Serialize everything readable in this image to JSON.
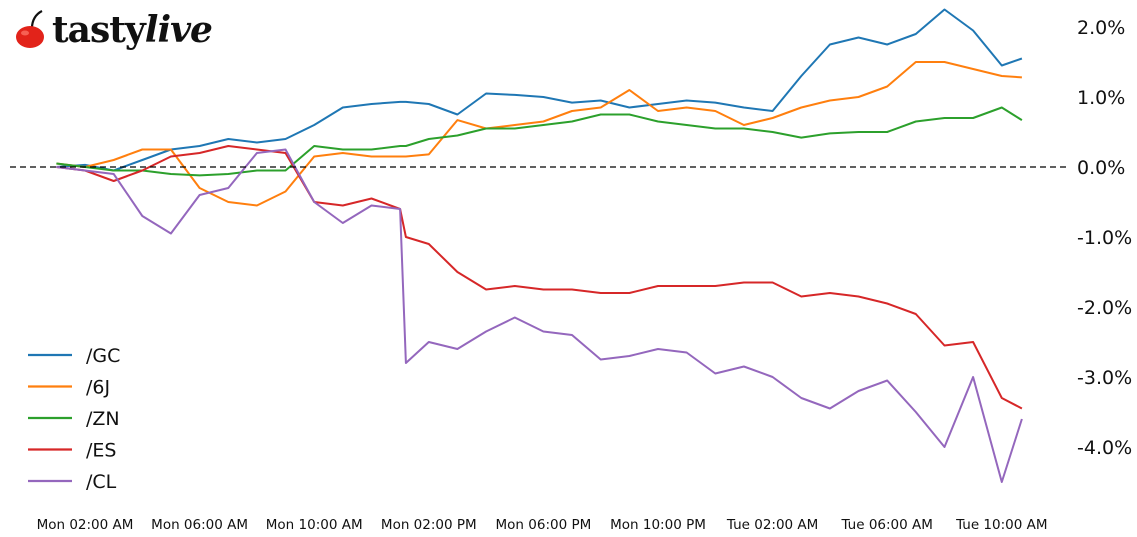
{
  "brand": {
    "name_a": "tasty",
    "name_b": "live",
    "cherry_color": "#e2231a"
  },
  "chart_data": {
    "type": "line",
    "title": "",
    "xlabel": "",
    "ylabel": "",
    "x_units": "hours since Mon 00:00",
    "x": [
      1,
      2,
      3,
      4,
      5,
      6,
      7,
      8,
      9,
      10,
      11,
      12,
      13,
      13.2,
      14,
      15,
      16,
      17,
      18,
      19,
      20,
      21,
      22,
      23,
      24,
      25,
      26,
      27,
      28,
      29,
      30,
      31,
      32,
      33,
      34,
      34.7
    ],
    "xlim": [
      0,
      36
    ],
    "ylim": [
      -4.8,
      2.3
    ],
    "x_ticks": [
      {
        "value": 2,
        "label": "Mon 02:00 AM"
      },
      {
        "value": 6,
        "label": "Mon 06:00 AM"
      },
      {
        "value": 10,
        "label": "Mon 10:00 AM"
      },
      {
        "value": 14,
        "label": "Mon 02:00 PM"
      },
      {
        "value": 18,
        "label": "Mon 06:00 PM"
      },
      {
        "value": 22,
        "label": "Mon 10:00 PM"
      },
      {
        "value": 26,
        "label": "Tue 02:00 AM"
      },
      {
        "value": 30,
        "label": "Tue 06:00 AM"
      },
      {
        "value": 34,
        "label": "Tue 10:00 AM"
      }
    ],
    "y_ticks": [
      {
        "value": 2,
        "label": "2.0%"
      },
      {
        "value": 1,
        "label": "1.0%"
      },
      {
        "value": 0,
        "label": "0.0%"
      },
      {
        "value": -1,
        "label": "-1.0%"
      },
      {
        "value": -2,
        "label": "-2.0%"
      },
      {
        "value": -3,
        "label": "-3.0%"
      },
      {
        "value": -4,
        "label": "-4.0%"
      }
    ],
    "y_axis_side": "right",
    "reference_line": {
      "value": 0,
      "style": "dashed",
      "color": "#000000"
    },
    "grid": false,
    "legend_position": "lower-left",
    "series": [
      {
        "name": "/GC",
        "color": "#1f77b4",
        "values": [
          0,
          0.03,
          -0.05,
          0.1,
          0.25,
          0.3,
          0.4,
          0.35,
          0.4,
          0.6,
          0.85,
          0.9,
          0.93,
          0.93,
          0.9,
          0.75,
          1.05,
          1.03,
          1.0,
          0.92,
          0.95,
          0.85,
          0.9,
          0.95,
          0.92,
          0.85,
          0.8,
          1.3,
          1.75,
          1.85,
          1.75,
          1.9,
          2.25,
          1.95,
          1.45,
          1.55
        ]
      },
      {
        "name": "/6J",
        "color": "#ff7f0e",
        "values": [
          0.05,
          0,
          0.1,
          0.25,
          0.25,
          -0.3,
          -0.5,
          -0.55,
          -0.35,
          0.15,
          0.2,
          0.15,
          0.15,
          0.15,
          0.18,
          0.67,
          0.55,
          0.6,
          0.65,
          0.8,
          0.85,
          1.1,
          0.8,
          0.85,
          0.8,
          0.6,
          0.7,
          0.85,
          0.95,
          1.0,
          1.15,
          1.5,
          1.5,
          1.4,
          1.3,
          1.28
        ]
      },
      {
        "name": "/ZN",
        "color": "#2ca02c",
        "values": [
          0.05,
          0,
          -0.05,
          -0.05,
          -0.1,
          -0.12,
          -0.1,
          -0.05,
          -0.05,
          0.3,
          0.25,
          0.25,
          0.3,
          0.3,
          0.4,
          0.45,
          0.55,
          0.55,
          0.6,
          0.65,
          0.75,
          0.75,
          0.65,
          0.6,
          0.55,
          0.55,
          0.5,
          0.42,
          0.48,
          0.5,
          0.5,
          0.65,
          0.7,
          0.7,
          0.85,
          0.67
        ]
      },
      {
        "name": "/ES",
        "color": "#d62728",
        "values": [
          0,
          -0.05,
          -0.2,
          -0.05,
          0.15,
          0.2,
          0.3,
          0.25,
          0.2,
          -0.5,
          -0.55,
          -0.45,
          -0.6,
          -1.0,
          -1.1,
          -1.5,
          -1.75,
          -1.7,
          -1.75,
          -1.75,
          -1.8,
          -1.8,
          -1.7,
          -1.7,
          -1.7,
          -1.65,
          -1.65,
          -1.85,
          -1.8,
          -1.85,
          -1.95,
          -2.1,
          -2.55,
          -2.5,
          -3.3,
          -3.45
        ]
      },
      {
        "name": "/CL",
        "color": "#9467bd",
        "values": [
          0,
          -0.05,
          -0.1,
          -0.7,
          -0.95,
          -0.4,
          -0.3,
          0.2,
          0.25,
          -0.5,
          -0.8,
          -0.55,
          -0.6,
          -2.8,
          -2.5,
          -2.6,
          -2.35,
          -2.15,
          -2.35,
          -2.4,
          -2.75,
          -2.7,
          -2.6,
          -2.65,
          -2.95,
          -2.85,
          -3.0,
          -3.3,
          -3.45,
          -3.2,
          -3.05,
          -3.5,
          -4.0,
          -3.0,
          -4.5,
          -3.6
        ]
      }
    ]
  }
}
